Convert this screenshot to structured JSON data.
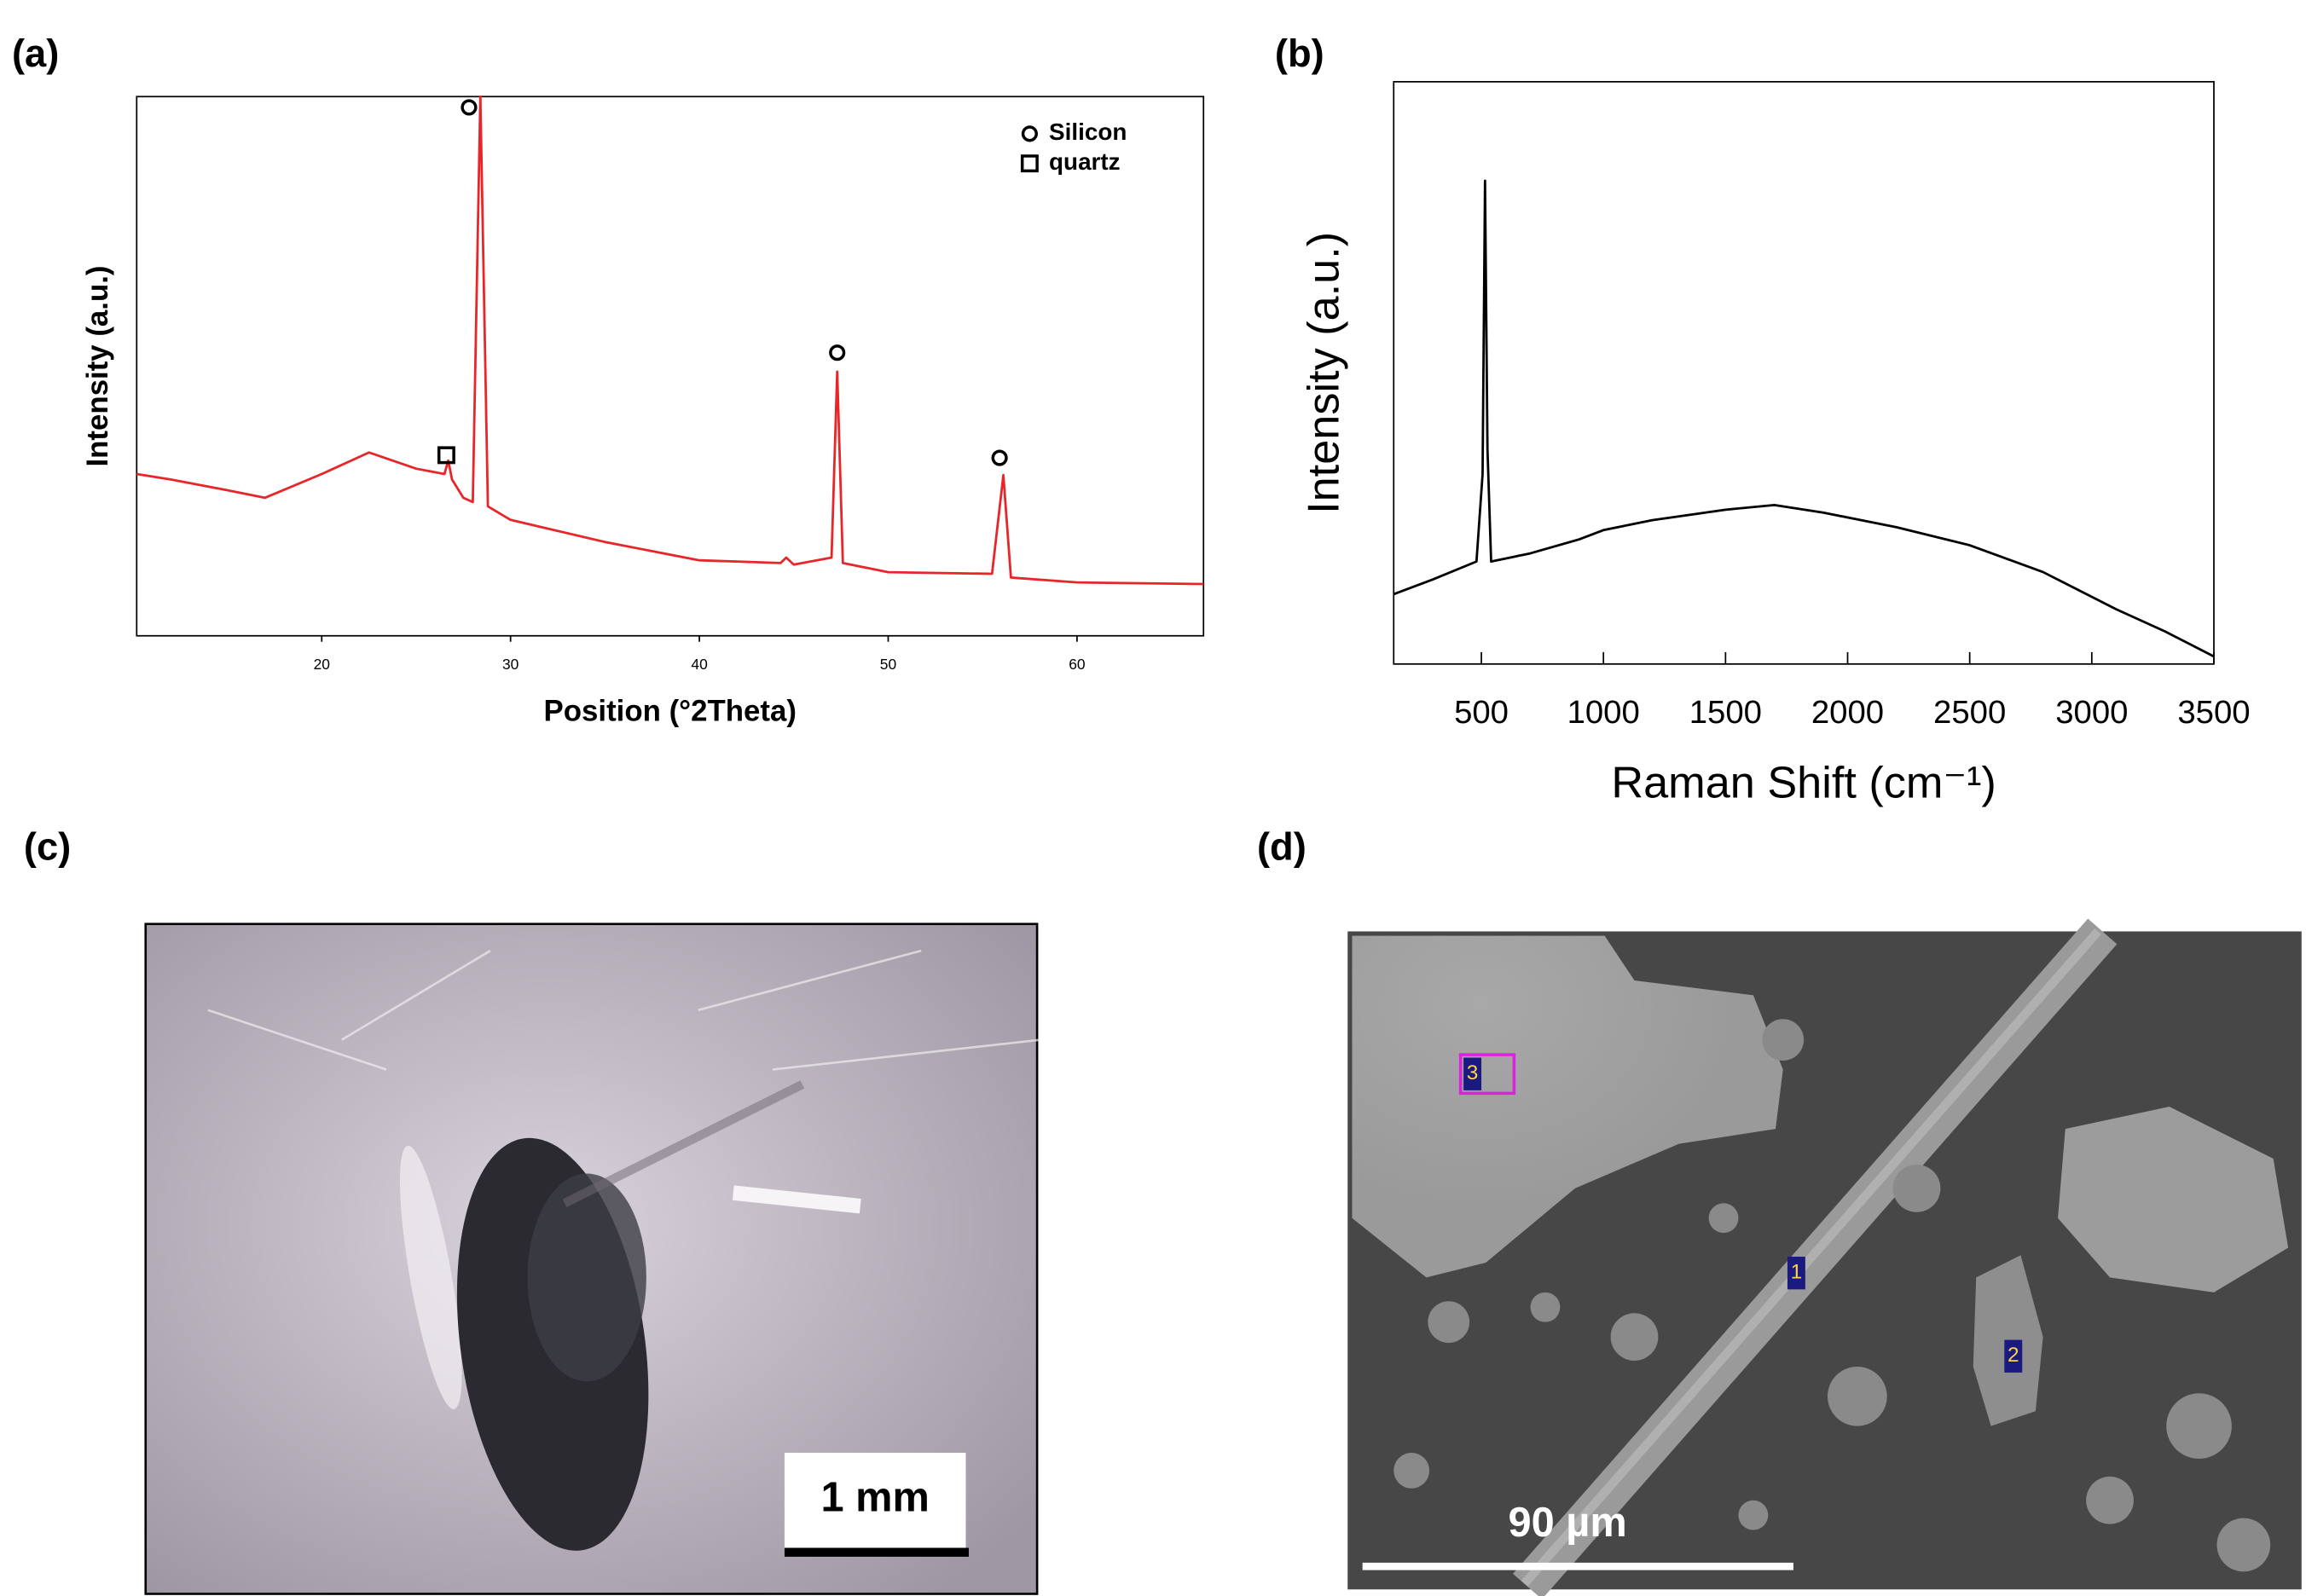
{
  "panels": [
    "(a)",
    "(b)",
    "(c)",
    "(d)"
  ],
  "chart_data": [
    {
      "type": "line",
      "x_label": "Position (°2Theta)",
      "y_label": "Intensity (a.u.)",
      "xlim": [
        10.2,
        66.7
      ],
      "ylim": [
        0,
        100
      ],
      "xticks": [
        20,
        30,
        40,
        50,
        60
      ],
      "series": [
        {
          "color": "#e8262a",
          "x": [
            10.2,
            12,
            15,
            17,
            20,
            22.5,
            25,
            26.5,
            26.7,
            26.9,
            27.5,
            28,
            28.4,
            28.8,
            30,
            35,
            40,
            44.3,
            44.6,
            45,
            47,
            47.3,
            47.6,
            50,
            55.5,
            56.1,
            56.5,
            60,
            66.7
          ],
          "values": [
            30,
            29,
            27,
            25.6,
            30,
            34,
            31,
            30,
            32.5,
            29,
            25.6,
            24.8,
            100,
            24,
            21.5,
            17.4,
            14,
            13.5,
            14.5,
            13.2,
            14.5,
            49,
            13.5,
            11.8,
            11.5,
            29.8,
            10.8,
            9.9,
            9.6
          ]
        }
      ],
      "peak_markers": [
        {
          "symbol": "circle",
          "x": 27.8,
          "y": 98
        },
        {
          "symbol": "circle",
          "x": 47.3,
          "y": 52.5
        },
        {
          "symbol": "circle",
          "x": 55.9,
          "y": 33
        },
        {
          "symbol": "square",
          "x": 26.6,
          "y": 33.5
        }
      ],
      "legend": [
        {
          "symbol": "circle",
          "label": "Silicon"
        },
        {
          "symbol": "square",
          "label": "quartz"
        }
      ]
    },
    {
      "type": "line",
      "x_label": "Raman Shift (cm⁻¹)",
      "y_label": "Intensity (a.u.)",
      "xlim": [
        141,
        3500
      ],
      "ylim": [
        0,
        100
      ],
      "xticks": [
        500,
        1000,
        1500,
        2000,
        2500,
        3000,
        3500
      ],
      "series": [
        {
          "color": "#000000",
          "x": [
            141,
            300,
            480,
            505,
            515,
            525,
            540,
            700,
            900,
            1000,
            1200,
            1500,
            1700,
            1900,
            2200,
            2500,
            2800,
            3100,
            3300,
            3500
          ],
          "values": [
            12,
            14.5,
            17.6,
            32.6,
            83,
            37,
            17.6,
            19,
            21.4,
            23,
            24.7,
            26.5,
            27.3,
            26,
            23.5,
            20.4,
            15.8,
            9.4,
            5.6,
            1.3
          ]
        }
      ]
    }
  ],
  "photos": [
    {
      "scale_bar": "1 mm"
    },
    {
      "scale_bar": "90 µm",
      "spots": [
        "1",
        "2",
        "3"
      ]
    }
  ]
}
